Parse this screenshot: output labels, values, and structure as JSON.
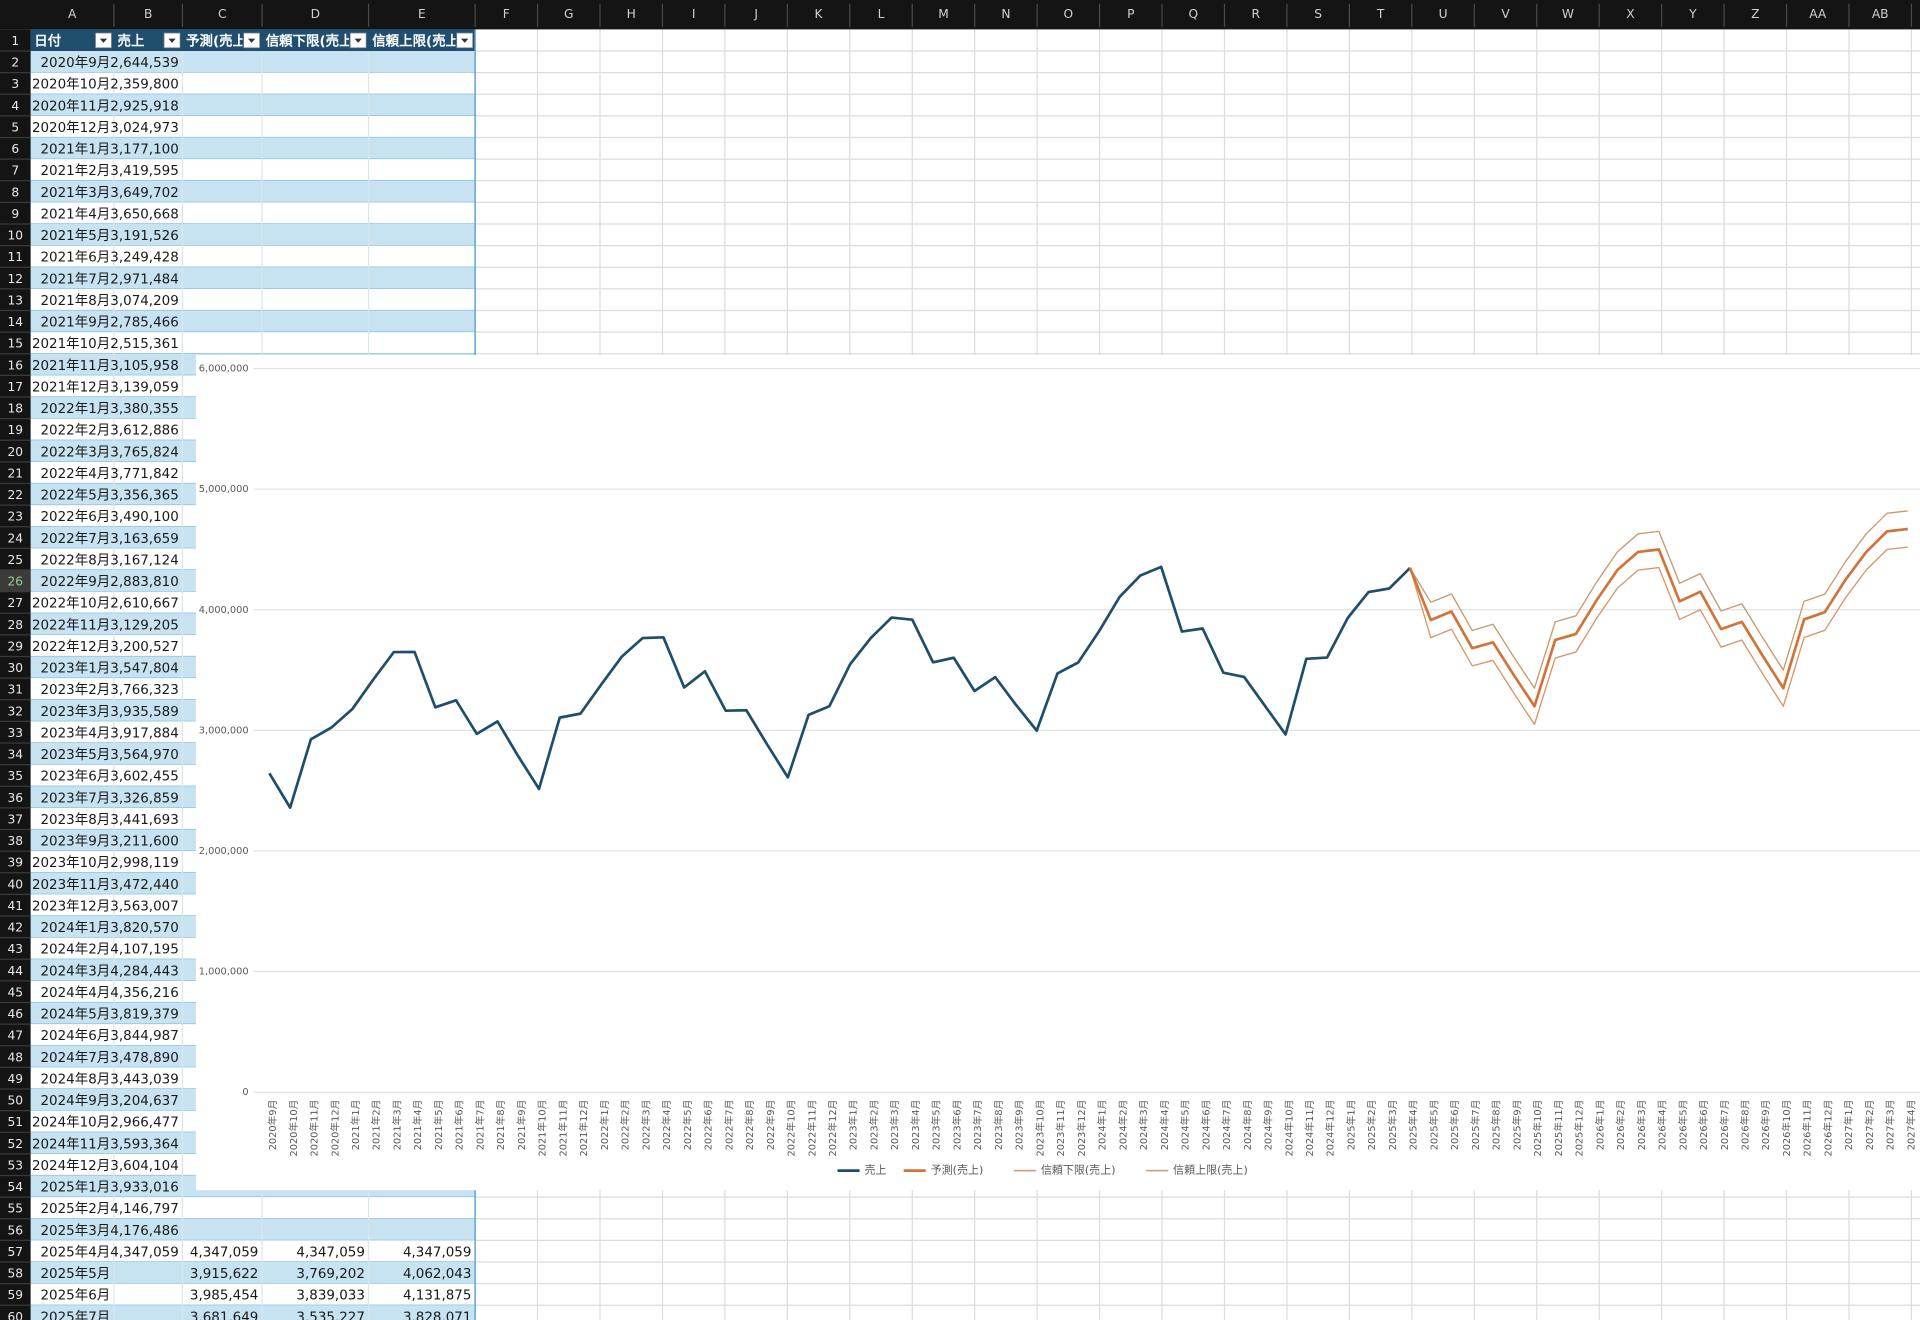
{
  "spreadsheet": {
    "columns": [
      "A",
      "B",
      "C",
      "D",
      "E",
      "F",
      "G",
      "H",
      "I",
      "J",
      "K",
      "L",
      "M",
      "N",
      "O",
      "P",
      "Q",
      "R",
      "S",
      "T",
      "U",
      "V",
      "W",
      "X",
      "Y",
      "Z",
      "AA",
      "AB"
    ],
    "row_numbers": [
      1,
      2,
      3,
      4,
      5,
      6,
      7,
      8,
      9,
      10,
      11,
      12,
      13,
      14,
      15,
      16,
      17,
      18,
      19,
      20,
      21,
      22,
      23,
      24,
      25,
      26,
      27,
      28,
      29,
      30,
      31,
      32,
      33,
      34,
      35,
      36,
      37,
      38,
      39,
      40,
      41,
      42,
      43,
      44,
      45,
      46,
      47,
      48,
      49,
      50,
      51,
      52,
      53,
      54,
      55,
      56,
      57,
      58,
      59,
      60
    ],
    "table": {
      "headers": [
        "日付",
        "売上",
        "予測(売上)",
        "信頼下限(売上)",
        "信頼上限(売上)"
      ],
      "rows": [
        [
          "2020年9月",
          "2,644,539"
        ],
        [
          "2020年10月",
          "2,359,800"
        ],
        [
          "2020年11月",
          "2,925,918"
        ],
        [
          "2020年12月",
          "3,024,973"
        ],
        [
          "2021年1月",
          "3,177,100"
        ],
        [
          "2021年2月",
          "3,419,595"
        ],
        [
          "2021年3月",
          "3,649,702"
        ],
        [
          "2021年4月",
          "3,650,668"
        ],
        [
          "2021年5月",
          "3,191,526"
        ],
        [
          "2021年6月",
          "3,249,428"
        ],
        [
          "2021年7月",
          "2,971,484"
        ],
        [
          "2021年8月",
          "3,074,209"
        ],
        [
          "2021年9月",
          "2,785,466"
        ],
        [
          "2021年10月",
          "2,515,361"
        ],
        [
          "2021年11月",
          "3,105,958"
        ],
        [
          "2021年12月",
          "3,139,059"
        ],
        [
          "2022年1月",
          "3,380,355"
        ],
        [
          "2022年2月",
          "3,612,886"
        ],
        [
          "2022年3月",
          "3,765,824"
        ],
        [
          "2022年4月",
          "3,771,842"
        ],
        [
          "2022年5月",
          "3,356,365"
        ],
        [
          "2022年6月",
          "3,490,100"
        ],
        [
          "2022年7月",
          "3,163,659"
        ],
        [
          "2022年8月",
          "3,167,124"
        ],
        [
          "2022年9月",
          "2,883,810"
        ],
        [
          "2022年10月",
          "2,610,667"
        ],
        [
          "2022年11月",
          "3,129,205"
        ],
        [
          "2022年12月",
          "3,200,527"
        ],
        [
          "2023年1月",
          "3,547,804"
        ],
        [
          "2023年2月",
          "3,766,323"
        ],
        [
          "2023年3月",
          "3,935,589"
        ],
        [
          "2023年4月",
          "3,917,884"
        ],
        [
          "2023年5月",
          "3,564,970"
        ],
        [
          "2023年6月",
          "3,602,455"
        ],
        [
          "2023年7月",
          "3,326,859"
        ],
        [
          "2023年8月",
          "3,441,693"
        ],
        [
          "2023年9月",
          "3,211,600"
        ],
        [
          "2023年10月",
          "2,998,119"
        ],
        [
          "2023年11月",
          "3,472,440"
        ],
        [
          "2023年12月",
          "3,563,007"
        ],
        [
          "2024年1月",
          "3,820,570"
        ],
        [
          "2024年2月",
          "4,107,195"
        ],
        [
          "2024年3月",
          "4,284,443"
        ],
        [
          "2024年4月",
          "4,356,216"
        ],
        [
          "2024年5月",
          "3,819,379"
        ],
        [
          "2024年6月",
          "3,844,987"
        ],
        [
          "2024年7月",
          "3,478,890"
        ],
        [
          "2024年8月",
          "3,443,039"
        ],
        [
          "2024年9月",
          "3,204,637"
        ],
        [
          "2024年10月",
          "2,966,477"
        ],
        [
          "2024年11月",
          "3,593,364"
        ],
        [
          "2024年12月",
          "3,604,104"
        ],
        [
          "2025年1月",
          "3,933,016"
        ],
        [
          "2025年2月",
          "4,146,797"
        ],
        [
          "2025年3月",
          "4,176,486"
        ],
        [
          "2025年4月",
          "4,347,059",
          "4,347,059",
          "4,347,059",
          "4,347,059"
        ],
        [
          "2025年5月",
          null,
          "3,915,622",
          "3,769,202",
          "4,062,043"
        ],
        [
          "2025年6月",
          null,
          "3,985,454",
          "3,839,033",
          "4,131,875"
        ],
        [
          "2025年7月",
          null,
          "3,681,649",
          "3,535,227",
          "3,828,071"
        ]
      ]
    }
  },
  "chart_data": {
    "type": "line",
    "categories": [
      "2020年9月",
      "2020年10月",
      "2020年11月",
      "2020年12月",
      "2021年1月",
      "2021年2月",
      "2021年3月",
      "2021年4月",
      "2021年5月",
      "2021年6月",
      "2021年7月",
      "2021年8月",
      "2021年9月",
      "2021年10月",
      "2021年11月",
      "2021年12月",
      "2022年1月",
      "2022年2月",
      "2022年3月",
      "2022年4月",
      "2022年5月",
      "2022年6月",
      "2022年7月",
      "2022年8月",
      "2022年9月",
      "2022年10月",
      "2022年11月",
      "2022年12月",
      "2023年1月",
      "2023年2月",
      "2023年3月",
      "2023年4月",
      "2023年5月",
      "2023年6月",
      "2023年7月",
      "2023年8月",
      "2023年9月",
      "2023年10月",
      "2023年11月",
      "2023年12月",
      "2024年1月",
      "2024年2月",
      "2024年3月",
      "2024年4月",
      "2024年5月",
      "2024年6月",
      "2024年7月",
      "2024年8月",
      "2024年9月",
      "2024年10月",
      "2024年11月",
      "2024年12月",
      "2025年1月",
      "2025年2月",
      "2025年3月",
      "2025年4月",
      "2025年5月",
      "2025年6月",
      "2025年7月",
      "2025年8月",
      "2025年9月",
      "2025年10月",
      "2025年11月",
      "2025年12月",
      "2026年1月",
      "2026年2月",
      "2026年3月",
      "2026年4月",
      "2026年5月",
      "2026年6月",
      "2026年7月",
      "2026年8月",
      "2026年9月",
      "2026年10月",
      "2026年11月",
      "2026年12月",
      "2027年1月",
      "2027年2月",
      "2027年3月",
      "2027年4月"
    ],
    "series": [
      {
        "name": "売上",
        "color": "#1f4e6b",
        "values": [
          2644539,
          2359800,
          2925918,
          3024973,
          3177100,
          3419595,
          3649702,
          3650668,
          3191526,
          3249428,
          2971484,
          3074209,
          2785466,
          2515361,
          3105958,
          3139059,
          3380355,
          3612886,
          3765824,
          3771842,
          3356365,
          3490100,
          3163659,
          3167124,
          2883810,
          2610667,
          3129205,
          3200527,
          3547804,
          3766323,
          3935589,
          3917884,
          3564970,
          3602455,
          3326859,
          3441693,
          3211600,
          2998119,
          3472440,
          3563007,
          3820570,
          4107195,
          4284443,
          4356216,
          3819379,
          3844987,
          3478890,
          3443039,
          3204637,
          2966477,
          3593364,
          3604104,
          3933016,
          4146797,
          4176486,
          4347059,
          null,
          null,
          null,
          null,
          null,
          null,
          null,
          null,
          null,
          null,
          null,
          null,
          null,
          null,
          null,
          null,
          null,
          null,
          null,
          null,
          null,
          null,
          null,
          null
        ]
      },
      {
        "name": "予測(売上)",
        "color": "#d2733a",
        "values": [
          null,
          null,
          null,
          null,
          null,
          null,
          null,
          null,
          null,
          null,
          null,
          null,
          null,
          null,
          null,
          null,
          null,
          null,
          null,
          null,
          null,
          null,
          null,
          null,
          null,
          null,
          null,
          null,
          null,
          null,
          null,
          null,
          null,
          null,
          null,
          null,
          null,
          null,
          null,
          null,
          null,
          null,
          null,
          null,
          null,
          null,
          null,
          null,
          null,
          null,
          null,
          null,
          null,
          null,
          null,
          4347059,
          3915622,
          3985454,
          3681649,
          3730000,
          3460000,
          3200000,
          3750000,
          3800000,
          4080000,
          4330000,
          4480000,
          4500000,
          4070000,
          4150000,
          3840000,
          3900000,
          3620000,
          3350000,
          3920000,
          3980000,
          4250000,
          4480000,
          4650000,
          4670000
        ]
      },
      {
        "name": "信頼下限(売上)",
        "color": "#d9956a",
        "values": [
          null,
          null,
          null,
          null,
          null,
          null,
          null,
          null,
          null,
          null,
          null,
          null,
          null,
          null,
          null,
          null,
          null,
          null,
          null,
          null,
          null,
          null,
          null,
          null,
          null,
          null,
          null,
          null,
          null,
          null,
          null,
          null,
          null,
          null,
          null,
          null,
          null,
          null,
          null,
          null,
          null,
          null,
          null,
          null,
          null,
          null,
          null,
          null,
          null,
          null,
          null,
          null,
          null,
          null,
          null,
          4347059,
          3769202,
          3839033,
          3535227,
          3580000,
          3310000,
          3050000,
          3600000,
          3650000,
          3930000,
          4180000,
          4330000,
          4350000,
          3920000,
          4000000,
          3690000,
          3750000,
          3470000,
          3200000,
          3770000,
          3830000,
          4100000,
          4330000,
          4500000,
          4520000
        ]
      },
      {
        "name": "信頼上限(売上)",
        "color": "#c99a70",
        "values": [
          null,
          null,
          null,
          null,
          null,
          null,
          null,
          null,
          null,
          null,
          null,
          null,
          null,
          null,
          null,
          null,
          null,
          null,
          null,
          null,
          null,
          null,
          null,
          null,
          null,
          null,
          null,
          null,
          null,
          null,
          null,
          null,
          null,
          null,
          null,
          null,
          null,
          null,
          null,
          null,
          null,
          null,
          null,
          null,
          null,
          null,
          null,
          null,
          null,
          null,
          null,
          null,
          null,
          null,
          null,
          4347059,
          4062043,
          4131875,
          3828071,
          3880000,
          3610000,
          3350000,
          3900000,
          3950000,
          4230000,
          4480000,
          4630000,
          4650000,
          4220000,
          4300000,
          3990000,
          4050000,
          3770000,
          3500000,
          4070000,
          4130000,
          4400000,
          4630000,
          4800000,
          4820000
        ]
      }
    ],
    "ylim": [
      0,
      6000000
    ],
    "yticks": [
      0,
      {
        "value": 1000000,
        "label": "1,000,000"
      },
      {
        "value": 2000000,
        "label": "2,000,000"
      },
      {
        "value": 3000000,
        "label": "3,000,000"
      },
      {
        "value": 4000000,
        "label": "4,000,000"
      },
      {
        "value": 5000000,
        "label": "5,000,000"
      },
      {
        "value": 6000000,
        "label": "6,000,000"
      }
    ],
    "grid": true,
    "legend": "bottom"
  }
}
